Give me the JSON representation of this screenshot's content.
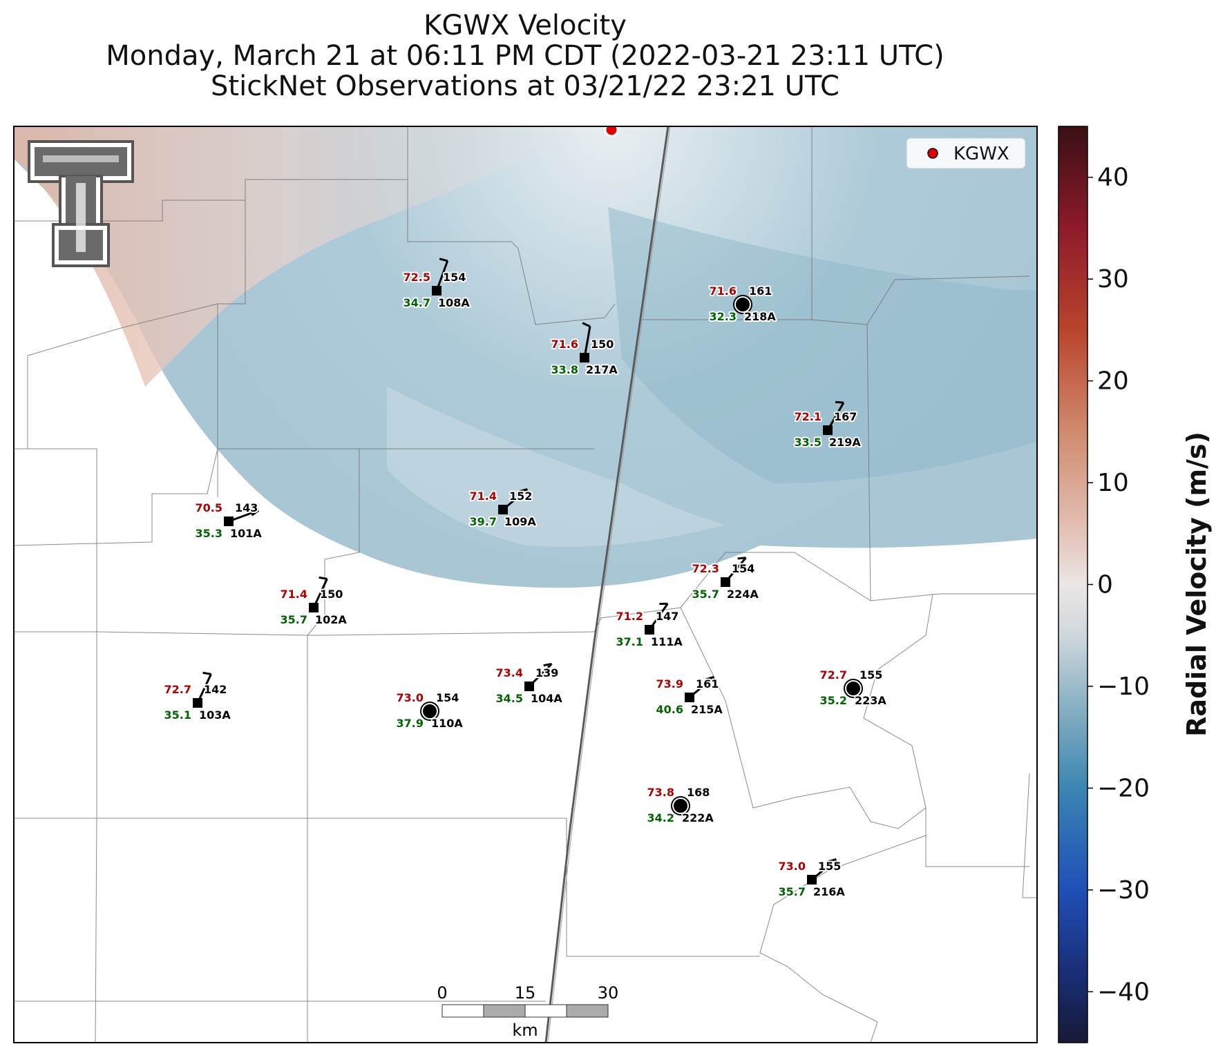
{
  "titles": {
    "line1": "KGWX Velocity",
    "line2": "Monday, March 21 at 06:11 PM CDT (2022-03-21 23:11 UTC)",
    "line3": "StickNet Observations at 03/21/22 23:21 UTC"
  },
  "legend": {
    "label": "KGWX",
    "marker_color": "#e00000"
  },
  "colorbar": {
    "label": "Radial Velocity (m/s)",
    "range": [
      -45,
      45
    ],
    "ticks": [
      "40",
      "30",
      "20",
      "10",
      "0",
      "−10",
      "−20",
      "−30",
      "−40"
    ],
    "tick_values": [
      40,
      30,
      20,
      10,
      0,
      -10,
      -20,
      -30,
      -40
    ],
    "color_stops": [
      {
        "value": 45,
        "color": "#3a0f14"
      },
      {
        "value": 35,
        "color": "#8e1a2b"
      },
      {
        "value": 25,
        "color": "#b9442c"
      },
      {
        "value": 15,
        "color": "#d08a6e"
      },
      {
        "value": 5,
        "color": "#e4c3b8"
      },
      {
        "value": 0,
        "color": "#ece6e6"
      },
      {
        "value": -5,
        "color": "#cfd8dd"
      },
      {
        "value": -12,
        "color": "#88b0c2"
      },
      {
        "value": -20,
        "color": "#3b85b3"
      },
      {
        "value": -30,
        "color": "#1f4fb8"
      },
      {
        "value": -38,
        "color": "#1a2e78"
      },
      {
        "value": -45,
        "color": "#161a36"
      }
    ]
  },
  "scale_bar": {
    "ticks": [
      "0",
      "15",
      "30"
    ],
    "unit": "km"
  },
  "stations": [
    {
      "id": "108A",
      "temp": "72.5",
      "dew": "34.7",
      "pressure": "154",
      "marker": "square",
      "wind_dir_deg": 160,
      "barbs": 1
    },
    {
      "id": "218A",
      "temp": "71.6",
      "dew": "32.3",
      "pressure": "161",
      "marker": "circle",
      "wind_dir_deg": 0,
      "barbs": 0
    },
    {
      "id": "217A",
      "temp": "71.6",
      "dew": "33.8",
      "pressure": "150",
      "marker": "square",
      "wind_dir_deg": 170,
      "barbs": 1
    },
    {
      "id": "219A",
      "temp": "72.1",
      "dew": "33.5",
      "pressure": "167",
      "marker": "square",
      "wind_dir_deg": 150,
      "barbs": 1
    },
    {
      "id": "101A",
      "temp": "70.5",
      "dew": "35.3",
      "pressure": "143",
      "marker": "square",
      "wind_dir_deg": 110,
      "barbs": 1
    },
    {
      "id": "109A",
      "temp": "71.4",
      "dew": "39.7",
      "pressure": "152",
      "marker": "square",
      "wind_dir_deg": 130,
      "barbs": 1
    },
    {
      "id": "224A",
      "temp": "72.3",
      "dew": "35.7",
      "pressure": "154",
      "marker": "square",
      "wind_dir_deg": 140,
      "barbs": 1
    },
    {
      "id": "102A",
      "temp": "71.4",
      "dew": "35.7",
      "pressure": "150",
      "marker": "square",
      "wind_dir_deg": 155,
      "barbs": 1
    },
    {
      "id": "111A",
      "temp": "71.2",
      "dew": "37.1",
      "pressure": "147",
      "marker": "square",
      "wind_dir_deg": 145,
      "barbs": 1
    },
    {
      "id": "103A",
      "temp": "72.7",
      "dew": "35.1",
      "pressure": "142",
      "marker": "square",
      "wind_dir_deg": 155,
      "barbs": 1
    },
    {
      "id": "110A",
      "temp": "73.0",
      "dew": "37.9",
      "pressure": "154",
      "marker": "circle",
      "wind_dir_deg": 0,
      "barbs": 0
    },
    {
      "id": "104A",
      "temp": "73.4",
      "dew": "34.5",
      "pressure": "139",
      "marker": "square",
      "wind_dir_deg": 135,
      "barbs": 1
    },
    {
      "id": "215A",
      "temp": "73.9",
      "dew": "40.6",
      "pressure": "161",
      "marker": "square",
      "wind_dir_deg": 130,
      "barbs": 1
    },
    {
      "id": "223A",
      "temp": "72.7",
      "dew": "35.2",
      "pressure": "155",
      "marker": "circle",
      "wind_dir_deg": 0,
      "barbs": 0
    },
    {
      "id": "222A",
      "temp": "73.8",
      "dew": "34.2",
      "pressure": "168",
      "marker": "circle",
      "wind_dir_deg": 0,
      "barbs": 0
    },
    {
      "id": "216A",
      "temp": "73.0",
      "dew": "35.7",
      "pressure": "155",
      "marker": "square",
      "wind_dir_deg": 130,
      "barbs": 1
    }
  ]
}
